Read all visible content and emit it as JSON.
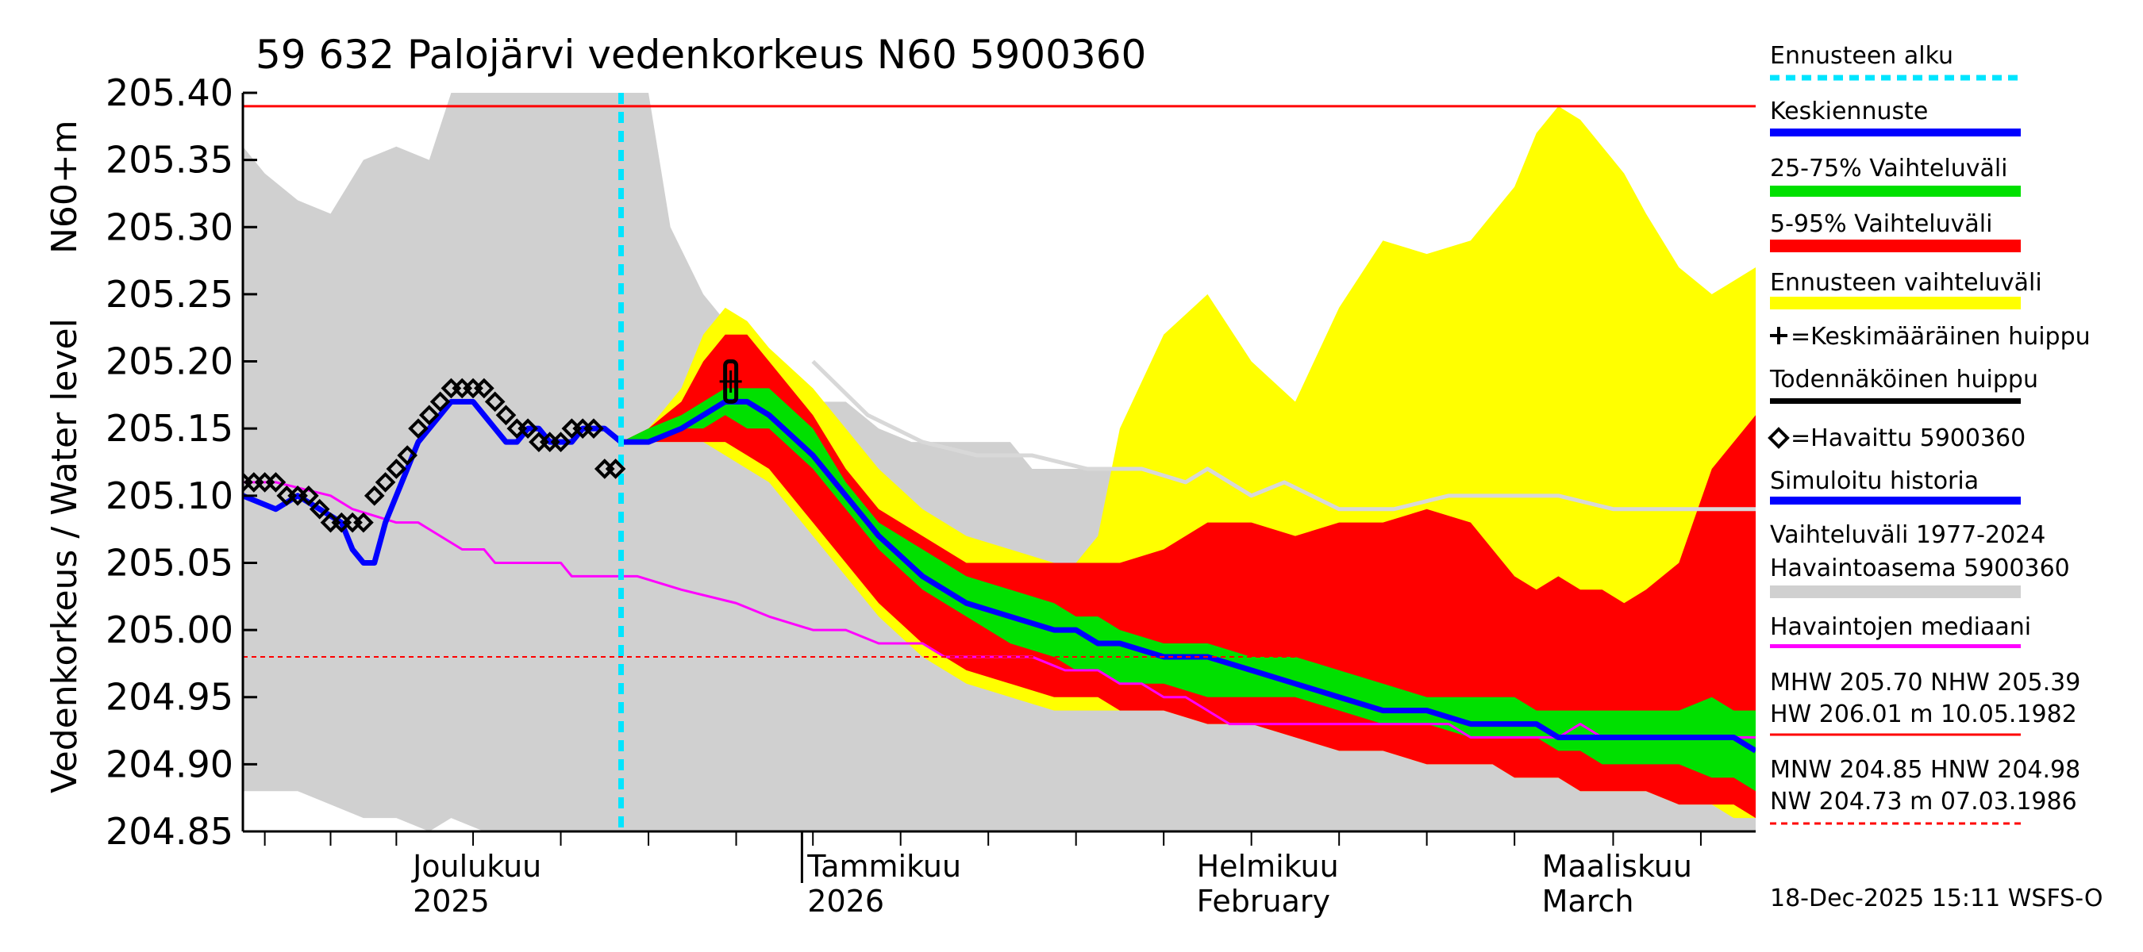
{
  "chart_data": {
    "type": "area",
    "title": "59 632 Palojärvi vedenkorkeus N60 5900360",
    "ylabel_main": "Vedenkorkeus / Water level",
    "ylabel_unit": "N60+m",
    "ylim": [
      204.85,
      205.4
    ],
    "yticks": [
      "205.40",
      "205.35",
      "205.30",
      "205.25",
      "205.20",
      "205.15",
      "205.10",
      "205.05",
      "205.00",
      "204.95",
      "204.90",
      "204.85"
    ],
    "x_domain_days": [
      0,
      138
    ],
    "x_day0": "2025-11-02",
    "x_ticks_days": [
      2,
      8,
      14,
      21,
      29,
      37,
      45,
      52,
      60,
      68,
      76,
      84,
      92,
      100,
      108,
      116,
      125,
      133
    ],
    "x_major_ticks_days": [
      51
    ],
    "months": [
      {
        "day": 15.5,
        "fi": "Joulukuu",
        "en": "2025"
      },
      {
        "day": 51.5,
        "fi": "Tammikuu",
        "en": "2026"
      },
      {
        "day": 87,
        "fi": "Helmikuu",
        "en": "February"
      },
      {
        "day": 118.5,
        "fi": "Maaliskuu",
        "en": "March"
      }
    ],
    "forecast_start_day": 34.5,
    "mhw_nhw_level": 205.39,
    "mnw_hnw_level": 204.98,
    "history_range": {
      "days": [
        0,
        2,
        5,
        8,
        11,
        14,
        17,
        19,
        22,
        23,
        26,
        29,
        35,
        37,
        39,
        42,
        46,
        49,
        52,
        55,
        58,
        61,
        64,
        67,
        70,
        72,
        75,
        79,
        80,
        82,
        84,
        86,
        88,
        90,
        92,
        95,
        100,
        110,
        120,
        130,
        138
      ],
      "upper": [
        205.36,
        205.34,
        205.32,
        205.31,
        205.35,
        205.36,
        205.35,
        205.4,
        205.4,
        205.4,
        205.4,
        205.4,
        205.4,
        205.4,
        205.3,
        205.25,
        205.21,
        205.18,
        205.17,
        205.17,
        205.15,
        205.14,
        205.14,
        205.14,
        205.14,
        205.12,
        205.12,
        205.12,
        205.12,
        205.11,
        205.11,
        205.11,
        205.1,
        205.1,
        205.1,
        205.1,
        205.1,
        205.1,
        205.1,
        205.1,
        205.1
      ],
      "lower": [
        204.88,
        204.88,
        204.88,
        204.87,
        204.86,
        204.86,
        204.85,
        204.86,
        204.85,
        204.85,
        204.85,
        204.85,
        204.85,
        204.85,
        204.85,
        204.85,
        204.85,
        204.85,
        204.85,
        204.85,
        204.85,
        204.85,
        204.85,
        204.85,
        204.85,
        204.85,
        204.85,
        204.85,
        204.85,
        204.85,
        204.85,
        204.85,
        204.85,
        204.85,
        204.85,
        204.85,
        204.85,
        204.85,
        204.85,
        204.85,
        204.85
      ]
    },
    "simulated_history_grey": {
      "days": [
        52,
        57,
        62,
        67,
        72,
        77,
        82,
        86,
        88,
        92,
        95,
        100,
        105,
        110,
        115,
        120,
        125,
        130,
        138
      ],
      "values": [
        205.2,
        205.16,
        205.14,
        205.13,
        205.13,
        205.12,
        205.12,
        205.11,
        205.12,
        205.1,
        205.11,
        205.09,
        205.09,
        205.1,
        205.1,
        205.1,
        205.09,
        205.09,
        205.09
      ]
    },
    "forecast_days": [
      34.5,
      37,
      40,
      42,
      44,
      46,
      48,
      52,
      55,
      58,
      62,
      66,
      70,
      74,
      76,
      78,
      80,
      84,
      88,
      92,
      96,
      100,
      104,
      108,
      112,
      114,
      116,
      118,
      120,
      122,
      124,
      126,
      128,
      131,
      134,
      136,
      138
    ],
    "band_ennuste": {
      "upper": [
        205.14,
        205.15,
        205.18,
        205.22,
        205.24,
        205.23,
        205.21,
        205.18,
        205.15,
        205.12,
        205.09,
        205.07,
        205.06,
        205.05,
        205.05,
        205.07,
        205.15,
        205.22,
        205.25,
        205.2,
        205.17,
        205.24,
        205.29,
        205.28,
        205.29,
        205.31,
        205.33,
        205.37,
        205.39,
        205.38,
        205.36,
        205.34,
        205.31,
        205.27,
        205.25,
        205.26,
        205.27
      ],
      "lower": [
        205.14,
        205.14,
        205.14,
        205.14,
        205.13,
        205.12,
        205.11,
        205.07,
        205.04,
        205.01,
        204.98,
        204.96,
        204.95,
        204.94,
        204.94,
        204.94,
        204.94,
        204.94,
        204.93,
        204.93,
        204.92,
        204.91,
        204.91,
        204.9,
        204.9,
        204.9,
        204.89,
        204.89,
        204.89,
        204.88,
        204.88,
        204.88,
        204.88,
        204.87,
        204.87,
        204.86,
        204.86
      ]
    },
    "band_5_95": {
      "upper": [
        205.14,
        205.15,
        205.17,
        205.2,
        205.22,
        205.22,
        205.2,
        205.16,
        205.12,
        205.09,
        205.07,
        205.05,
        205.05,
        205.05,
        205.05,
        205.05,
        205.05,
        205.06,
        205.08,
        205.08,
        205.07,
        205.08,
        205.08,
        205.09,
        205.08,
        205.06,
        205.04,
        205.03,
        205.04,
        205.03,
        205.03,
        205.02,
        205.03,
        205.05,
        205.12,
        205.14,
        205.16
      ],
      "lower": [
        205.14,
        205.14,
        205.14,
        205.14,
        205.14,
        205.13,
        205.12,
        205.08,
        205.05,
        205.02,
        204.99,
        204.97,
        204.96,
        204.95,
        204.95,
        204.95,
        204.94,
        204.94,
        204.93,
        204.93,
        204.92,
        204.91,
        204.91,
        204.9,
        204.9,
        204.9,
        204.89,
        204.89,
        204.89,
        204.88,
        204.88,
        204.88,
        204.88,
        204.87,
        204.87,
        204.87,
        204.86
      ]
    },
    "band_25_75": {
      "upper": [
        205.14,
        205.15,
        205.16,
        205.17,
        205.18,
        205.18,
        205.18,
        205.15,
        205.11,
        205.08,
        205.06,
        205.04,
        205.03,
        205.02,
        205.01,
        205.01,
        205.0,
        204.99,
        204.99,
        204.98,
        204.98,
        204.97,
        204.96,
        204.95,
        204.95,
        204.95,
        204.95,
        204.94,
        204.94,
        204.94,
        204.94,
        204.94,
        204.94,
        204.94,
        204.95,
        204.94,
        204.94
      ],
      "lower": [
        205.14,
        205.14,
        205.15,
        205.15,
        205.16,
        205.15,
        205.15,
        205.12,
        205.09,
        205.06,
        205.03,
        205.01,
        204.99,
        204.98,
        204.97,
        204.97,
        204.96,
        204.96,
        204.95,
        204.95,
        204.95,
        204.94,
        204.93,
        204.93,
        204.92,
        204.92,
        204.92,
        204.92,
        204.91,
        204.91,
        204.9,
        204.9,
        204.9,
        204.9,
        204.89,
        204.89,
        204.88
      ]
    },
    "median_forecast": {
      "values": [
        205.14,
        205.14,
        205.15,
        205.16,
        205.17,
        205.17,
        205.16,
        205.13,
        205.1,
        205.07,
        205.04,
        205.02,
        205.01,
        205.0,
        205.0,
        204.99,
        204.99,
        204.98,
        204.98,
        204.97,
        204.96,
        204.95,
        204.94,
        204.94,
        204.93,
        204.93,
        204.93,
        204.93,
        204.92,
        204.92,
        204.92,
        204.92,
        204.92,
        204.92,
        204.92,
        204.92,
        204.91
      ]
    },
    "simulated_history": {
      "days": [
        0,
        3,
        5,
        7,
        9,
        10,
        11,
        12,
        13,
        14,
        15,
        16,
        17,
        18,
        19,
        20,
        21,
        22,
        23,
        24,
        25,
        26,
        27,
        28,
        29,
        30,
        31,
        32,
        33,
        34.5
      ],
      "values": [
        205.1,
        205.09,
        205.1,
        205.09,
        205.08,
        205.06,
        205.05,
        205.05,
        205.08,
        205.1,
        205.12,
        205.14,
        205.15,
        205.16,
        205.17,
        205.17,
        205.17,
        205.16,
        205.15,
        205.14,
        205.14,
        205.15,
        205.15,
        205.14,
        205.14,
        205.14,
        205.15,
        205.15,
        205.15,
        205.14
      ]
    },
    "observations": {
      "days": [
        0,
        1,
        2,
        3,
        4,
        5,
        6,
        7,
        8,
        9,
        10,
        11,
        12,
        13,
        14,
        15,
        16,
        17,
        18,
        19,
        20,
        21,
        22,
        23,
        24,
        25,
        26,
        27,
        28,
        29,
        30,
        31,
        32,
        33,
        34
      ],
      "values": [
        205.11,
        205.11,
        205.11,
        205.11,
        205.1,
        205.1,
        205.1,
        205.09,
        205.08,
        205.08,
        205.08,
        205.08,
        205.1,
        205.11,
        205.12,
        205.13,
        205.15,
        205.16,
        205.17,
        205.18,
        205.18,
        205.18,
        205.18,
        205.17,
        205.16,
        205.15,
        205.15,
        205.14,
        205.14,
        205.14,
        205.15,
        205.15,
        205.15,
        205.12,
        205.12
      ]
    },
    "observed_median": {
      "days": [
        0,
        3,
        8,
        10,
        14,
        16,
        18,
        20,
        22,
        23,
        29,
        30,
        36,
        40,
        45,
        48,
        52,
        55,
        58,
        62,
        64,
        68,
        72,
        75,
        78,
        80,
        82,
        84,
        86,
        88,
        90,
        92,
        95,
        100,
        105,
        110,
        112,
        115,
        118,
        120,
        122,
        124,
        126,
        128,
        130,
        132,
        134,
        136,
        138
      ],
      "values": [
        205.11,
        205.11,
        205.1,
        205.09,
        205.08,
        205.08,
        205.07,
        205.06,
        205.06,
        205.05,
        205.05,
        205.04,
        205.04,
        205.03,
        205.02,
        205.01,
        205.0,
        205.0,
        204.99,
        204.99,
        204.98,
        204.98,
        204.98,
        204.97,
        204.97,
        204.96,
        204.96,
        204.95,
        204.95,
        204.94,
        204.93,
        204.93,
        204.93,
        204.93,
        204.93,
        204.93,
        204.92,
        204.92,
        204.92,
        204.92,
        204.93,
        204.92,
        204.92,
        204.92,
        204.92,
        204.92,
        204.92,
        204.92,
        204.92
      ]
    },
    "peak_marker": {
      "day": 44.5,
      "value": 205.185,
      "low": 205.17,
      "high": 205.2
    }
  },
  "legend": [
    {
      "label": "Ennusteen alku",
      "color": "#00e5ff"
    },
    {
      "label": "Keskiennuste",
      "color": "#0000ff"
    },
    {
      "label": "25-75% Vaihteluväli",
      "color": "#00e000"
    },
    {
      "label": "5-95% Vaihteluväli",
      "color": "#ff0000"
    },
    {
      "label": "Ennusteen vaihteluväli",
      "color": "#ffff00"
    },
    {
      "label": "=Keskimääräinen huippu",
      "color": "#000000"
    },
    {
      "label": "Todennäköinen huippu",
      "color": "#000000"
    },
    {
      "label": "=Havaittu 5900360",
      "color": "#000000"
    },
    {
      "label": "Simuloitu historia",
      "color": "#0000ff"
    },
    {
      "label": "Vaihteluväli 1977-2024",
      "color": "#d0d0d0"
    },
    {
      "label": "Havaintoasema 5900360",
      "color": "#d0d0d0"
    },
    {
      "label": "Havaintojen mediaani",
      "color": "#ff00ff"
    }
  ],
  "stats": {
    "line1": "MHW 205.70 NHW 205.39",
    "line2": "HW 206.01 m 10.05.1982",
    "line3": "MNW 204.85 HNW 204.98",
    "line4": "NW 204.73 m 07.03.1986"
  },
  "footer": "18-Dec-2025 15:11 WSFS-O",
  "colors": {
    "history_band": "#d0d0d0",
    "forecast_range": "#ffff00",
    "band_5_95": "#ff0000",
    "band_25_75": "#00e000",
    "median_forecast": "#0000ff",
    "simulated_history": "#0000ff",
    "observed_median": "#ff00ff",
    "forecast_start": "#00e5ff",
    "high_line": "#ff0000",
    "grey_sim": "#d0d0d0"
  }
}
